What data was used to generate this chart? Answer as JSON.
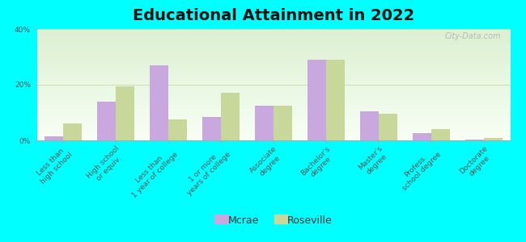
{
  "title": "Educational Attainment in 2022",
  "categories": [
    "Less than\nhigh school",
    "High school\nor equiv.",
    "Less than\n1 year of college",
    "1 or more\nyears of college",
    "Associate\ndegree",
    "Bachelor's\ndegree",
    "Master's\ndegree",
    "Profess.\nschool degree",
    "Doctorate\ndegree"
  ],
  "mcrae": [
    1.5,
    14.0,
    27.0,
    8.5,
    12.5,
    29.0,
    10.5,
    2.5,
    0.2
  ],
  "roseville": [
    6.0,
    19.5,
    7.5,
    17.0,
    12.5,
    29.0,
    9.5,
    4.0,
    1.0
  ],
  "mcrae_color": "#c9a8e0",
  "roseville_color": "#c8d89a",
  "outer_bg": "#00ffff",
  "plot_bg": "#e8f2da",
  "ylim": [
    0,
    40
  ],
  "yticks": [
    0,
    20,
    40
  ],
  "ytick_labels": [
    "0%",
    "20%",
    "40%"
  ],
  "grid_color": "#ccddb0",
  "bar_width": 0.35,
  "title_fontsize": 14,
  "tick_fontsize": 6.5,
  "legend_fontsize": 9,
  "watermark": "City-Data.com"
}
